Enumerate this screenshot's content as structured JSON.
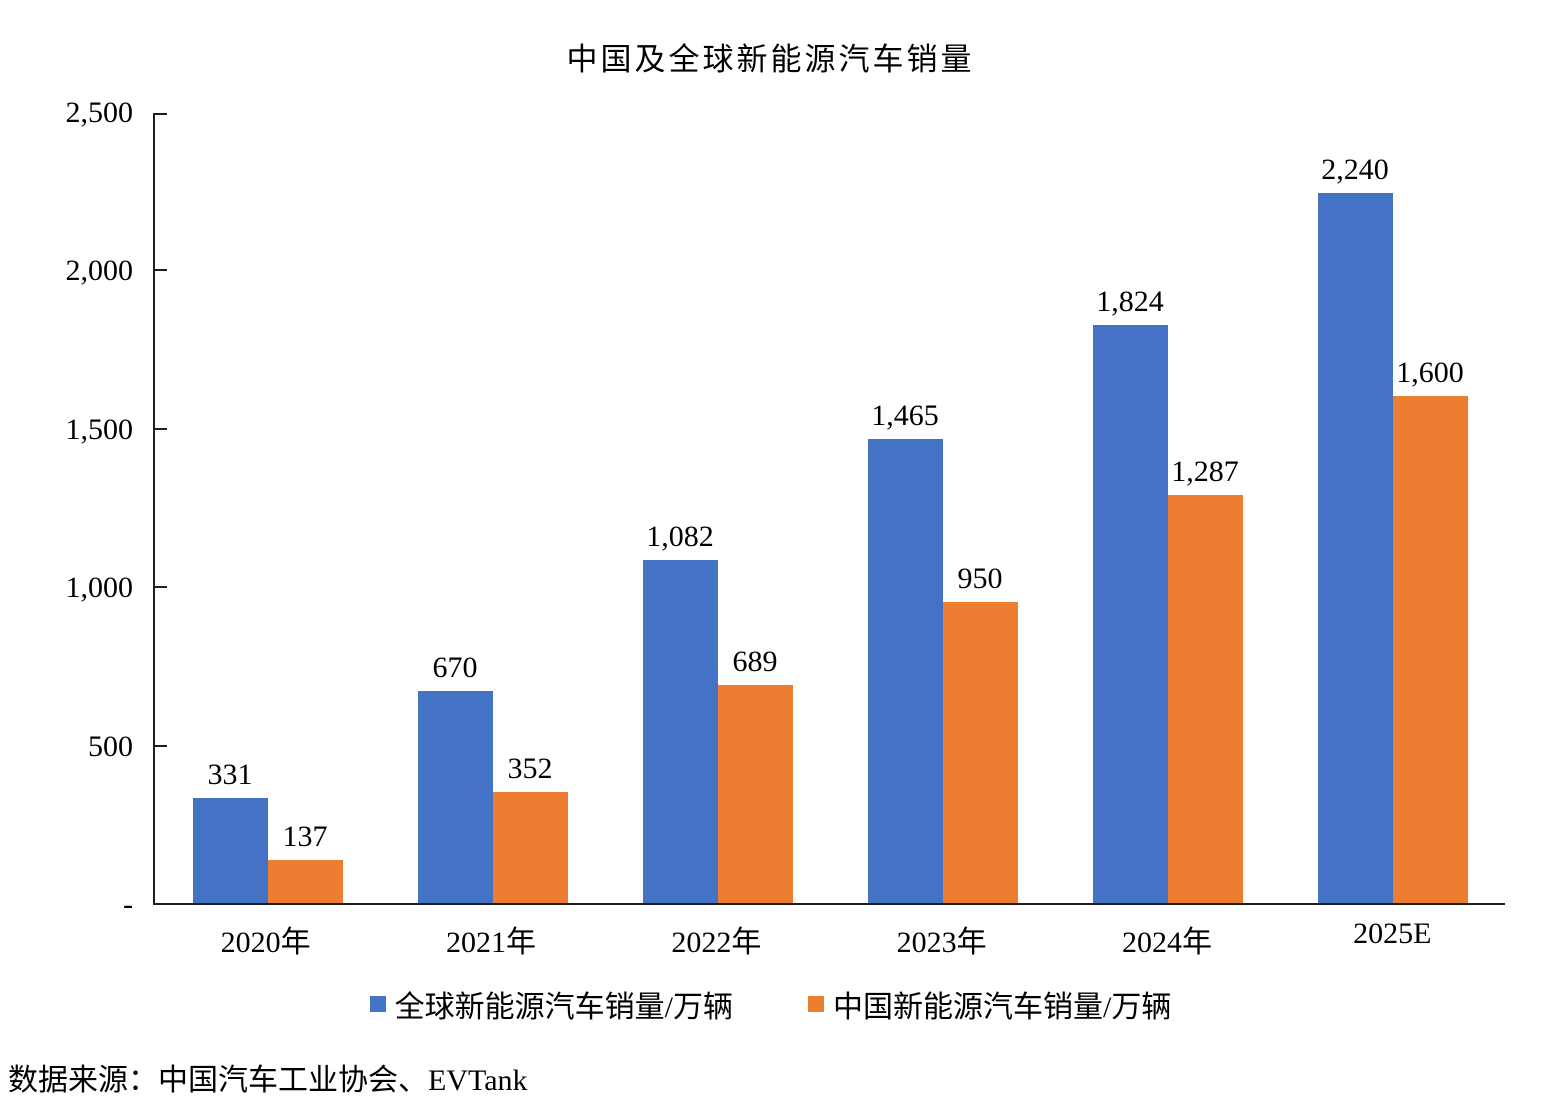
{
  "title": "中国及全球新能源汽车销量",
  "source_note": "数据来源：中国汽车工业协会、EVTank",
  "colors": {
    "global_series": "#4472C4",
    "china_series": "#ED7D31",
    "axis": "#1f1f1f",
    "text": "#000000",
    "background": "#ffffff"
  },
  "legend": {
    "items": [
      {
        "label": "全球新能源汽车销量/万辆",
        "color": "#4472C4"
      },
      {
        "label": "中国新能源汽车销量/万辆",
        "color": "#ED7D31"
      }
    ],
    "position": "bottom"
  },
  "chart_data": {
    "type": "bar",
    "title": "中国及全球新能源汽车销量",
    "categories": [
      "2020年",
      "2021年",
      "2022年",
      "2023年",
      "2024年",
      "2025E"
    ],
    "series": [
      {
        "name": "全球新能源汽车销量/万辆",
        "color": "#4472C4",
        "values": [
          331,
          670,
          1082,
          1465,
          1824,
          2240
        ],
        "labels": [
          "331",
          "670",
          "1,082",
          "1,465",
          "1,824",
          "2,240"
        ]
      },
      {
        "name": "中国新能源汽车销量/万辆",
        "color": "#ED7D31",
        "values": [
          137,
          352,
          689,
          950,
          1287,
          1600
        ],
        "labels": [
          "137",
          "352",
          "689",
          "950",
          "1,287",
          "1,600"
        ]
      }
    ],
    "xlabel": "",
    "ylabel": "",
    "ylim": [
      0,
      2500
    ],
    "y_tick_step": 500,
    "y_tick_labels": [
      "-",
      "500",
      "1,000",
      "1,500",
      "2,000",
      "2,500"
    ],
    "grid": false,
    "legend_position": "bottom"
  }
}
